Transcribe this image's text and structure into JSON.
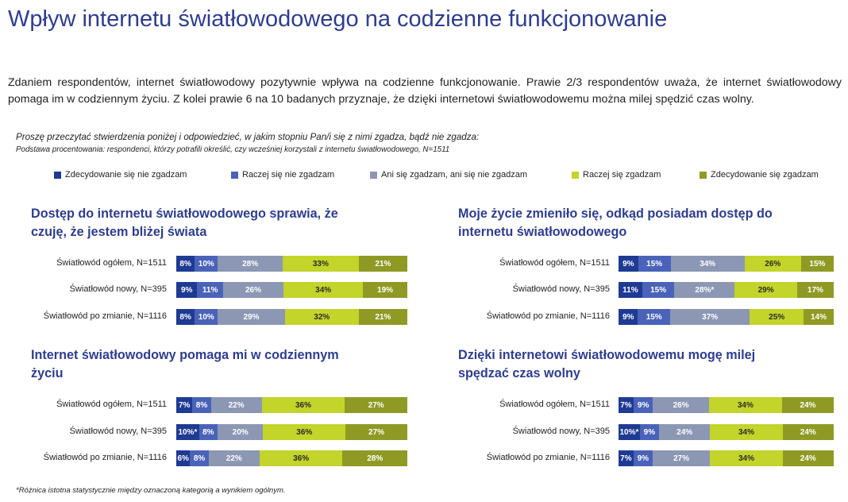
{
  "title": "Wpływ internetu światłowodowego na codzienne funkcjonowanie",
  "intro": "Zdaniem respondentów, internet światłowodowy pozytywnie wpływa na codzienne funkcjonowanie. Prawie 2/3 respondentów uważa, że internet światłowodowy pomaga im w codziennym życiu. Z kolei prawie 6 na 10 badanych przyznaje, że dzięki internetowi światłowodowemu można milej spędzić czas wolny.",
  "question": "Proszę przeczytać stwierdzenia poniżej i odpowiedzieć, w jakim stopniu Pan/i się z nimi zgadza, bądź nie zgadza:",
  "base": "Podstawa procentowania: respondenci, którzy potrafili określić, czy wcześniej korzystali z internetu światłowodowego, N=1511",
  "footnote": "*Różnica istotna statystycznie między oznaczoną kategorią a wynikiem ogólnym.",
  "chart_data": [
    {
      "type": "bar",
      "title": "Dostęp do internetu światłowodowego sprawia, że czuję, że jestem bliżej świata",
      "categories": [
        "Światłowód ogółem, N=1511",
        "Światłowód nowy, N=395",
        "Światłowód po zmianie, N=1116"
      ],
      "series": [
        {
          "name": "Zdecydowanie się nie zgadzam",
          "color": "#1f3a93",
          "values": [
            8,
            9,
            8
          ],
          "labels": [
            "8%",
            "9%",
            "8%"
          ]
        },
        {
          "name": "Raczej się nie zgadzam",
          "color": "#4a63b8",
          "values": [
            10,
            11,
            10
          ],
          "labels": [
            "10%",
            "11%",
            "10%"
          ]
        },
        {
          "name": "Ani się zgadzam, ani się nie zgadzam",
          "color": "#8c97b4",
          "values": [
            28,
            26,
            29
          ],
          "labels": [
            "28%",
            "26%",
            "29%"
          ]
        },
        {
          "name": "Raczej się zgadzam",
          "color": "#c3d42a",
          "values": [
            33,
            34,
            32
          ],
          "labels": [
            "33%",
            "34%",
            "32%"
          ]
        },
        {
          "name": "Zdecydowanie się zgadzam",
          "color": "#8f9a24",
          "values": [
            21,
            19,
            21
          ],
          "labels": [
            "21%",
            "19%",
            "21%"
          ]
        }
      ]
    },
    {
      "type": "bar",
      "title": "Moje życie zmieniło się, odkąd posiadam dostęp do internetu światłowodowego",
      "categories": [
        "Światłowód ogółem, N=1511",
        "Światłowód nowy, N=395",
        "Światłowód po zmianie, N=1116"
      ],
      "series": [
        {
          "name": "Zdecydowanie się nie zgadzam",
          "color": "#1f3a93",
          "values": [
            9,
            11,
            9
          ],
          "labels": [
            "9%",
            "11%",
            "9%"
          ]
        },
        {
          "name": "Raczej się nie zgadzam",
          "color": "#4a63b8",
          "values": [
            15,
            15,
            15
          ],
          "labels": [
            "15%",
            "15%",
            "15%"
          ]
        },
        {
          "name": "Ani się zgadzam, ani się nie zgadzam",
          "color": "#8c97b4",
          "values": [
            34,
            28,
            37
          ],
          "labels": [
            "34%",
            "28%*",
            "37%"
          ]
        },
        {
          "name": "Raczej się zgadzam",
          "color": "#c3d42a",
          "values": [
            26,
            29,
            25
          ],
          "labels": [
            "26%",
            "29%",
            "25%"
          ]
        },
        {
          "name": "Zdecydowanie się zgadzam",
          "color": "#8f9a24",
          "values": [
            15,
            17,
            14
          ],
          "labels": [
            "15%",
            "17%",
            "14%"
          ]
        }
      ]
    },
    {
      "type": "bar",
      "title": "Internet światłowodowy pomaga mi w codziennym życiu",
      "categories": [
        "Światłowód ogółem, N=1511",
        "Światłowód nowy, N=395",
        "Światłowód po zmianie, N=1116"
      ],
      "series": [
        {
          "name": "Zdecydowanie się nie zgadzam",
          "color": "#1f3a93",
          "values": [
            7,
            10,
            6
          ],
          "labels": [
            "7%",
            "10%*",
            "6%"
          ]
        },
        {
          "name": "Raczej się nie zgadzam",
          "color": "#4a63b8",
          "values": [
            8,
            8,
            8
          ],
          "labels": [
            "8%",
            "8%",
            "8%"
          ]
        },
        {
          "name": "Ani się zgadzam, ani się nie zgadzam",
          "color": "#8c97b4",
          "values": [
            22,
            20,
            22
          ],
          "labels": [
            "22%",
            "20%",
            "22%"
          ]
        },
        {
          "name": "Raczej się zgadzam",
          "color": "#c3d42a",
          "values": [
            36,
            36,
            36
          ],
          "labels": [
            "36%",
            "36%",
            "36%"
          ]
        },
        {
          "name": "Zdecydowanie się zgadzam",
          "color": "#8f9a24",
          "values": [
            27,
            27,
            28
          ],
          "labels": [
            "27%",
            "27%",
            "28%"
          ]
        }
      ]
    },
    {
      "type": "bar",
      "title": "Dzięki internetowi światłowodowemu mogę milej spędzać czas wolny",
      "categories": [
        "Światłowód ogółem, N=1511",
        "Światłowód nowy, N=395",
        "Światłowód po zmianie, N=1116"
      ],
      "series": [
        {
          "name": "Zdecydowanie się nie zgadzam",
          "color": "#1f3a93",
          "values": [
            7,
            10,
            7
          ],
          "labels": [
            "7%",
            "10%*",
            "7%"
          ]
        },
        {
          "name": "Raczej się nie zgadzam",
          "color": "#4a63b8",
          "values": [
            9,
            9,
            9
          ],
          "labels": [
            "9%",
            "9%",
            "9%"
          ]
        },
        {
          "name": "Ani się zgadzam, ani się nie zgadzam",
          "color": "#8c97b4",
          "values": [
            26,
            24,
            27
          ],
          "labels": [
            "26%",
            "24%",
            "27%"
          ]
        },
        {
          "name": "Raczej się zgadzam",
          "color": "#c3d42a",
          "values": [
            34,
            34,
            34
          ],
          "labels": [
            "34%",
            "34%",
            "34%"
          ]
        },
        {
          "name": "Zdecydowanie się zgadzam",
          "color": "#8f9a24",
          "values": [
            24,
            24,
            24
          ],
          "labels": [
            "24%",
            "24%",
            "24%"
          ]
        }
      ]
    }
  ]
}
